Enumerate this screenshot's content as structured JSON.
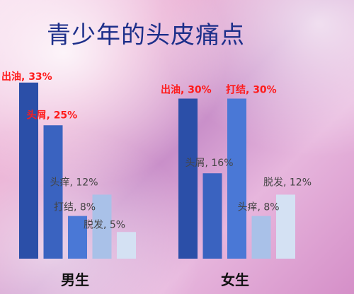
{
  "title": "青少年的头皮痛点",
  "chart_data": {
    "type": "bar",
    "title": "青少年的头皮痛点",
    "ylim": [
      0,
      35
    ],
    "groups": [
      {
        "name": "男生",
        "bars": [
          {
            "label": "出油",
            "value": 33,
            "text": "出油, 33%",
            "highlight": true
          },
          {
            "label": "头屑",
            "value": 25,
            "text": "头屑, 25%",
            "highlight": true
          },
          {
            "label": "打结",
            "value": 8,
            "text": "打结, 8%",
            "highlight": false
          },
          {
            "label": "头痒",
            "value": 12,
            "text": "头痒, 12%",
            "highlight": false
          },
          {
            "label": "脱发",
            "value": 5,
            "text": "脱发, 5%",
            "highlight": false
          }
        ]
      },
      {
        "name": "女生",
        "bars": [
          {
            "label": "出油",
            "value": 30,
            "text": "出油, 30%",
            "highlight": true
          },
          {
            "label": "头屑",
            "value": 16,
            "text": "头屑, 16%",
            "highlight": false
          },
          {
            "label": "打结",
            "value": 30,
            "text": "打结, 30%",
            "highlight": true
          },
          {
            "label": "头痒",
            "value": 8,
            "text": "头痒, 8%",
            "highlight": false
          },
          {
            "label": "脱发",
            "value": 12,
            "text": "脱发, 12%",
            "highlight": false
          }
        ]
      }
    ],
    "colors": {
      "bar_fills": [
        "#2b4fa8",
        "#3a63c0",
        "#4a78d6",
        "#a9c1e8",
        "#d4e1f3"
      ],
      "highlight_label": "#ff1a1a",
      "normal_label": "#444444"
    }
  }
}
